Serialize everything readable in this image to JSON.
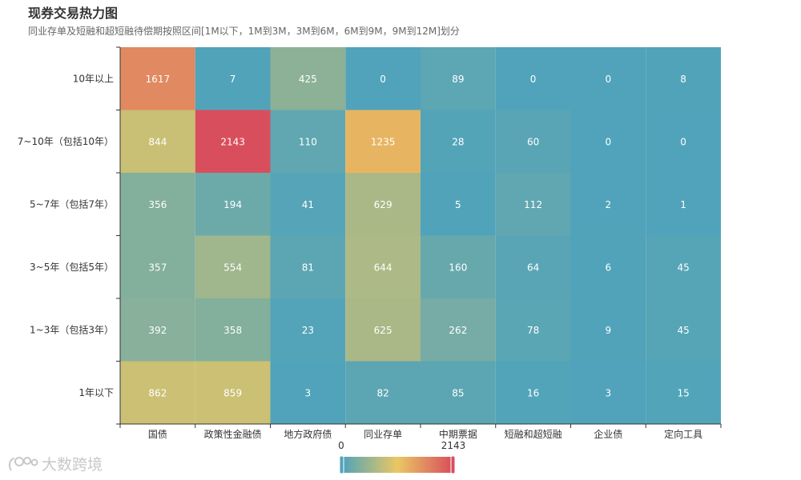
{
  "title": "现券交易热力图",
  "subtitle": "同业存单及短融和超短融待偿期按照区间[1M以下，1M到3M，3M到6M，6M到9M，9M到12M]划分",
  "watermark": "大数跨境",
  "chart_data": {
    "type": "heatmap",
    "x_categories": [
      "国债",
      "政策性金融债",
      "地方政府债",
      "同业存单",
      "中期票据",
      "短融和超短融",
      "企业债",
      "定向工具"
    ],
    "y_categories": [
      "1年以下",
      "1~3年（包括3年）",
      "3~5年（包括5年）",
      "5~7年（包括7年）",
      "7~10年（包括10年）",
      "10年以上"
    ],
    "values": [
      [
        862,
        859,
        3,
        82,
        85,
        16,
        3,
        15
      ],
      [
        392,
        358,
        23,
        625,
        262,
        78,
        9,
        45
      ],
      [
        357,
        554,
        81,
        644,
        160,
        64,
        6,
        45
      ],
      [
        356,
        194,
        41,
        629,
        5,
        112,
        2,
        1
      ],
      [
        844,
        2143,
        110,
        1235,
        28,
        60,
        0,
        0
      ],
      [
        1617,
        7,
        425,
        0,
        89,
        0,
        0,
        8
      ]
    ],
    "visual_map": {
      "min": 0,
      "max": 2143,
      "min_label": "0",
      "max_label": "2143",
      "colors": [
        "#50a3ba",
        "#eac763",
        "#d94e5d"
      ]
    }
  }
}
